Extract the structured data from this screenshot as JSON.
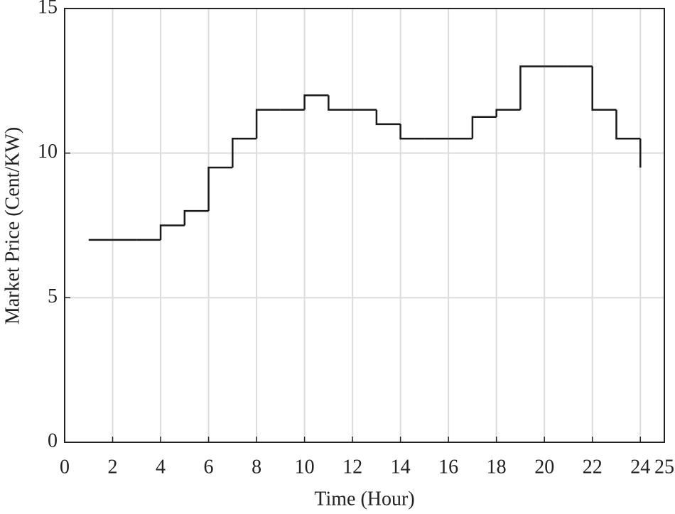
{
  "chart_data": {
    "type": "stairs",
    "x_label": "Time (Hour)",
    "y_label": "Market Price (Cent/KW)",
    "x": [
      1,
      2,
      3,
      4,
      5,
      6,
      7,
      8,
      9,
      10,
      11,
      12,
      13,
      14,
      15,
      16,
      17,
      18,
      19,
      20,
      21,
      22,
      23,
      24
    ],
    "values": [
      7,
      7,
      7,
      7.5,
      8,
      9.5,
      10.5,
      11.5,
      11.5,
      12,
      11.5,
      11.5,
      11,
      10.5,
      10.5,
      10.5,
      11.25,
      11.5,
      13,
      13,
      13,
      11.5,
      10.5,
      9.5
    ],
    "color": "#1a1a1a",
    "xlim": [
      0,
      25
    ],
    "xticks": [
      0,
      2,
      4,
      6,
      8,
      10,
      12,
      14,
      16,
      18,
      20,
      22,
      24,
      25
    ],
    "ylim": [
      0,
      15
    ],
    "yticks": [
      0,
      5,
      10,
      15
    ],
    "grid": true
  }
}
